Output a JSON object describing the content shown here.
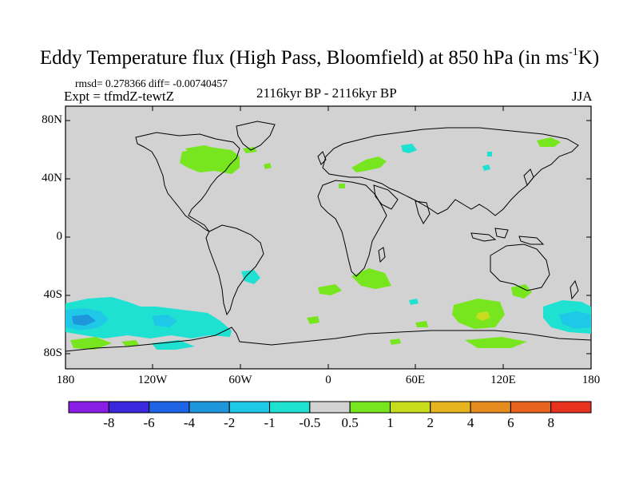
{
  "title": {
    "main": "Eddy Temperature flux (High Pass, Bloomfield) at 850 hPa (in ms",
    "sup": "-1",
    "end": "K)"
  },
  "stats": "rmsd= 0.278366 diff= -0.00740457",
  "experiment": "Expt = tfmdZ-tewtZ",
  "period": "2116kyr BP - 2116kyr BP",
  "season": "JJA",
  "map": {
    "lat_labels": [
      "80N",
      "40N",
      "0",
      "40S",
      "80S"
    ],
    "lon_labels": [
      "180",
      "120W",
      "60W",
      "0",
      "60E",
      "120E",
      "180"
    ],
    "lat_ticks": [
      80,
      40,
      0,
      -40,
      -80
    ],
    "lon_ticks": [
      -180,
      -120,
      -60,
      0,
      60,
      120,
      180
    ],
    "extent": {
      "lon": [
        -180,
        180
      ],
      "lat": [
        -90,
        90
      ]
    },
    "background_color": "#d2d2d2"
  },
  "colorbar": {
    "labels": [
      "-8",
      "-6",
      "-4",
      "-2",
      "-1",
      "-0.5",
      "0.5",
      "1",
      "2",
      "4",
      "6",
      "8"
    ],
    "colors": [
      "#8a1ee6",
      "#3c28dc",
      "#1e64e6",
      "#1e96dc",
      "#1ec8e6",
      "#1ee1d2",
      "#d2d2d2",
      "#78e61e",
      "#c8dc1e",
      "#e6b41e",
      "#e68c1e",
      "#e6641e",
      "#e6321e"
    ]
  },
  "legend": {
    "green": "#78e61e",
    "cyan": "#1ee1d2",
    "lightblue": "#1ec8e6",
    "blue": "#1e96dc",
    "yellow": "#c8dc1e"
  }
}
